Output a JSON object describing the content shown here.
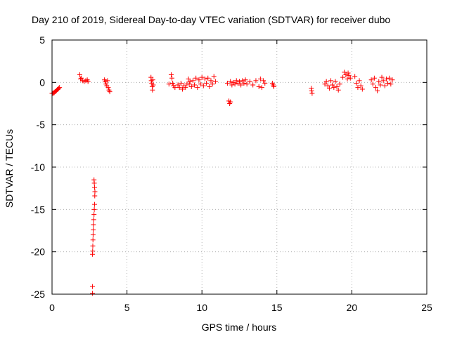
{
  "chart_data": {
    "type": "scatter",
    "title": "Day 210 of 2019, Sidereal Day-to-day VTEC variation (SDTVAR) for receiver dubo",
    "xlabel": "GPS time / hours",
    "ylabel": "SDTVAR / TECUs",
    "xlim": [
      0,
      25
    ],
    "ylim": [
      -25,
      5
    ],
    "xticks": [
      0,
      5,
      10,
      15,
      20,
      25
    ],
    "yticks": [
      -25,
      -20,
      -15,
      -10,
      -5,
      0,
      5
    ],
    "grid": true,
    "marker": "+",
    "color": "#ff0000",
    "series": [
      {
        "name": "SDTVAR",
        "points": [
          [
            0.0,
            -1.3
          ],
          [
            0.05,
            -1.3
          ],
          [
            0.1,
            -1.25
          ],
          [
            0.15,
            -1.2
          ],
          [
            0.2,
            -1.1
          ],
          [
            0.25,
            -1.05
          ],
          [
            0.3,
            -0.95
          ],
          [
            0.35,
            -0.85
          ],
          [
            0.4,
            -0.8
          ],
          [
            0.45,
            -0.7
          ],
          [
            0.5,
            -0.6
          ],
          [
            1.85,
            0.9
          ],
          [
            1.9,
            0.4
          ],
          [
            1.95,
            0.5
          ],
          [
            2.05,
            0.2
          ],
          [
            2.15,
            0.1
          ],
          [
            2.25,
            0.2
          ],
          [
            2.35,
            0.3
          ],
          [
            2.4,
            0.1
          ],
          [
            2.8,
            -11.5
          ],
          [
            2.82,
            -11.9
          ],
          [
            2.84,
            -12.4
          ],
          [
            2.86,
            -12.9
          ],
          [
            2.85,
            -13.4
          ],
          [
            2.84,
            -14.4
          ],
          [
            2.82,
            -15.0
          ],
          [
            2.8,
            -15.6
          ],
          [
            2.78,
            -16.2
          ],
          [
            2.76,
            -16.8
          ],
          [
            2.75,
            -17.4
          ],
          [
            2.74,
            -18.0
          ],
          [
            2.73,
            -18.6
          ],
          [
            2.72,
            -19.3
          ],
          [
            2.71,
            -19.9
          ],
          [
            2.7,
            -20.3
          ],
          [
            2.7,
            -24.1
          ],
          [
            2.7,
            -24.9
          ],
          [
            3.5,
            0.3
          ],
          [
            3.55,
            0.1
          ],
          [
            3.6,
            -0.2
          ],
          [
            3.65,
            -0.4
          ],
          [
            3.7,
            0.2
          ],
          [
            3.75,
            -0.6
          ],
          [
            3.8,
            -0.9
          ],
          [
            3.85,
            -1.1
          ],
          [
            6.6,
            0.6
          ],
          [
            6.62,
            0.2
          ],
          [
            6.65,
            -0.1
          ],
          [
            6.68,
            -0.5
          ],
          [
            6.7,
            -0.9
          ],
          [
            6.72,
            0.3
          ],
          [
            6.75,
            -0.3
          ],
          [
            7.8,
            -0.2
          ],
          [
            7.95,
            0.9
          ],
          [
            8.0,
            0.5
          ],
          [
            8.05,
            -0.1
          ],
          [
            8.1,
            -0.4
          ],
          [
            8.2,
            -0.6
          ],
          [
            8.4,
            -0.3
          ],
          [
            8.5,
            -0.6
          ],
          [
            8.6,
            -0.1
          ],
          [
            8.7,
            -0.8
          ],
          [
            8.8,
            -0.4
          ],
          [
            8.9,
            -0.6
          ],
          [
            9.0,
            -0.2
          ],
          [
            9.1,
            0.4
          ],
          [
            9.15,
            -0.2
          ],
          [
            9.2,
            0.1
          ],
          [
            9.3,
            -0.5
          ],
          [
            9.4,
            0.2
          ],
          [
            9.5,
            -0.3
          ],
          [
            9.6,
            0.5
          ],
          [
            9.7,
            -0.6
          ],
          [
            9.8,
            0.3
          ],
          [
            9.9,
            -0.2
          ],
          [
            10.0,
            0.6
          ],
          [
            10.1,
            -0.4
          ],
          [
            10.2,
            0.4
          ],
          [
            10.3,
            -0.1
          ],
          [
            10.4,
            0.5
          ],
          [
            10.5,
            -0.5
          ],
          [
            10.6,
            0.2
          ],
          [
            10.7,
            -0.2
          ],
          [
            10.8,
            0.7
          ],
          [
            10.9,
            0.1
          ],
          [
            11.8,
            -2.2
          ],
          [
            11.85,
            -2.5
          ],
          [
            11.9,
            -2.3
          ],
          [
            11.7,
            -0.1
          ],
          [
            11.9,
            0.1
          ],
          [
            12.0,
            -0.3
          ],
          [
            12.1,
            0.0
          ],
          [
            12.2,
            -0.2
          ],
          [
            12.3,
            0.2
          ],
          [
            12.4,
            -0.1
          ],
          [
            12.5,
            0.1
          ],
          [
            12.6,
            -0.3
          ],
          [
            12.7,
            0.2
          ],
          [
            12.8,
            -0.1
          ],
          [
            12.9,
            0.3
          ],
          [
            13.0,
            -0.2
          ],
          [
            13.2,
            0.1
          ],
          [
            13.4,
            -0.3
          ],
          [
            13.6,
            0.2
          ],
          [
            13.8,
            -0.5
          ],
          [
            13.9,
            0.4
          ],
          [
            14.0,
            -0.6
          ],
          [
            14.1,
            0.2
          ],
          [
            14.2,
            -0.1
          ],
          [
            14.7,
            -0.1
          ],
          [
            14.75,
            -0.3
          ],
          [
            14.8,
            -0.5
          ],
          [
            17.3,
            -0.7
          ],
          [
            17.32,
            -1.0
          ],
          [
            17.35,
            -1.3
          ],
          [
            18.2,
            -0.2
          ],
          [
            18.3,
            0.1
          ],
          [
            18.4,
            -0.4
          ],
          [
            18.5,
            -0.7
          ],
          [
            18.6,
            0.2
          ],
          [
            18.7,
            -0.3
          ],
          [
            18.8,
            -0.6
          ],
          [
            18.9,
            0.1
          ],
          [
            19.0,
            -0.5
          ],
          [
            19.1,
            -0.9
          ],
          [
            19.2,
            -0.2
          ],
          [
            19.4,
            0.6
          ],
          [
            19.5,
            1.2
          ],
          [
            19.6,
            0.9
          ],
          [
            19.7,
            0.4
          ],
          [
            19.75,
            1.1
          ],
          [
            19.8,
            0.8
          ],
          [
            19.9,
            0.5
          ],
          [
            20.2,
            0.7
          ],
          [
            20.3,
            -0.1
          ],
          [
            20.4,
            -0.6
          ],
          [
            20.5,
            0.2
          ],
          [
            20.6,
            -0.4
          ],
          [
            20.7,
            -0.8
          ],
          [
            21.3,
            0.3
          ],
          [
            21.4,
            -0.2
          ],
          [
            21.5,
            0.5
          ],
          [
            21.6,
            -0.6
          ],
          [
            21.7,
            -1.0
          ],
          [
            21.8,
            0.1
          ],
          [
            21.9,
            -0.3
          ],
          [
            22.0,
            0.6
          ],
          [
            22.1,
            0.2
          ],
          [
            22.2,
            -0.4
          ],
          [
            22.3,
            0.4
          ],
          [
            22.4,
            -0.1
          ],
          [
            22.5,
            0.5
          ],
          [
            22.6,
            -0.2
          ],
          [
            22.7,
            0.3
          ]
        ]
      }
    ]
  }
}
